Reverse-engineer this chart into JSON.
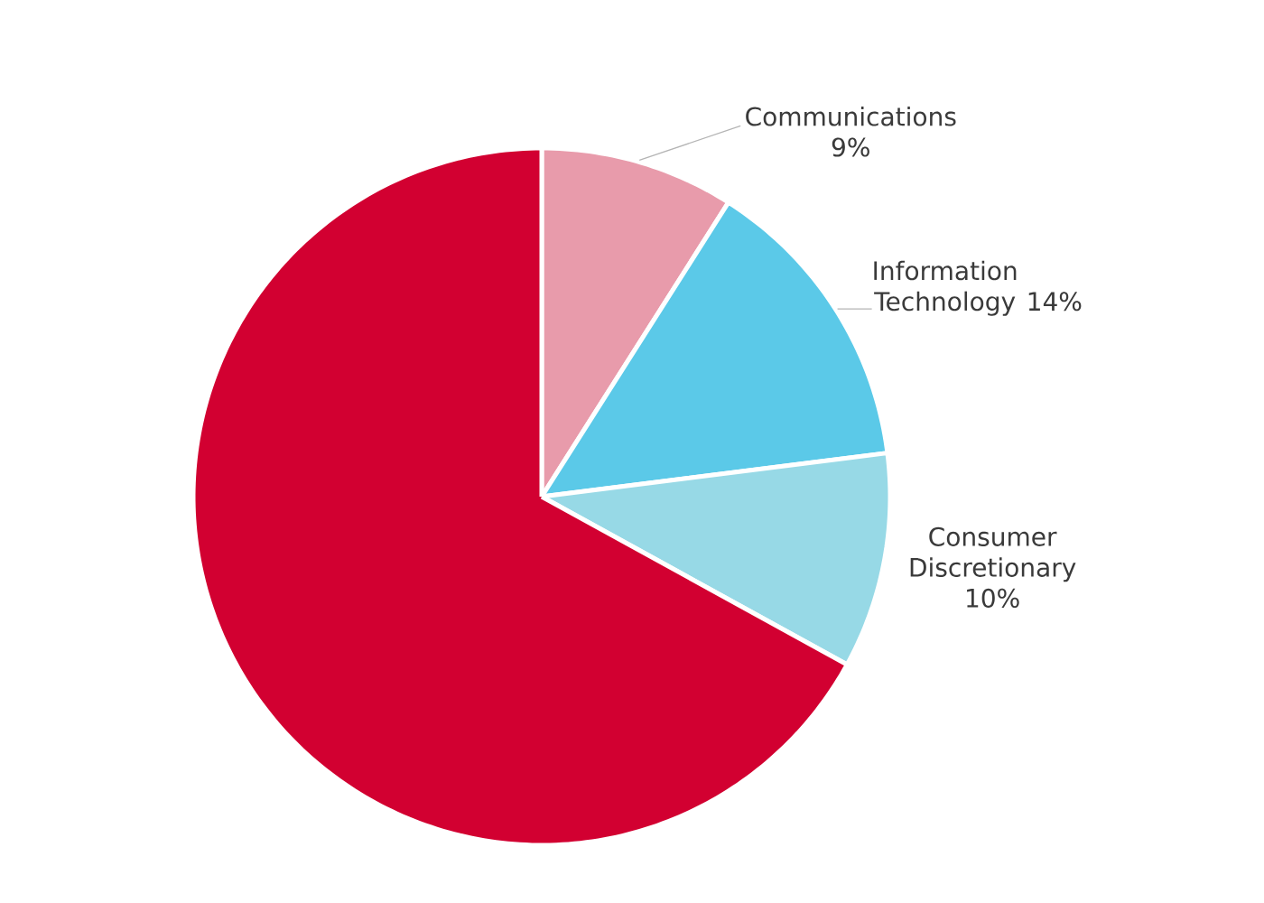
{
  "chart_data": {
    "type": "pie",
    "categories": [
      "Communications",
      "Information Technology",
      "Consumer Discretionary",
      null
    ],
    "values": [
      9,
      14,
      10,
      67
    ],
    "colors": [
      "#e89bab",
      "#5bc9e8",
      "#97d9e6",
      "#d20031"
    ],
    "value_labels": [
      "9%",
      "14%",
      "10%",
      null
    ]
  }
}
